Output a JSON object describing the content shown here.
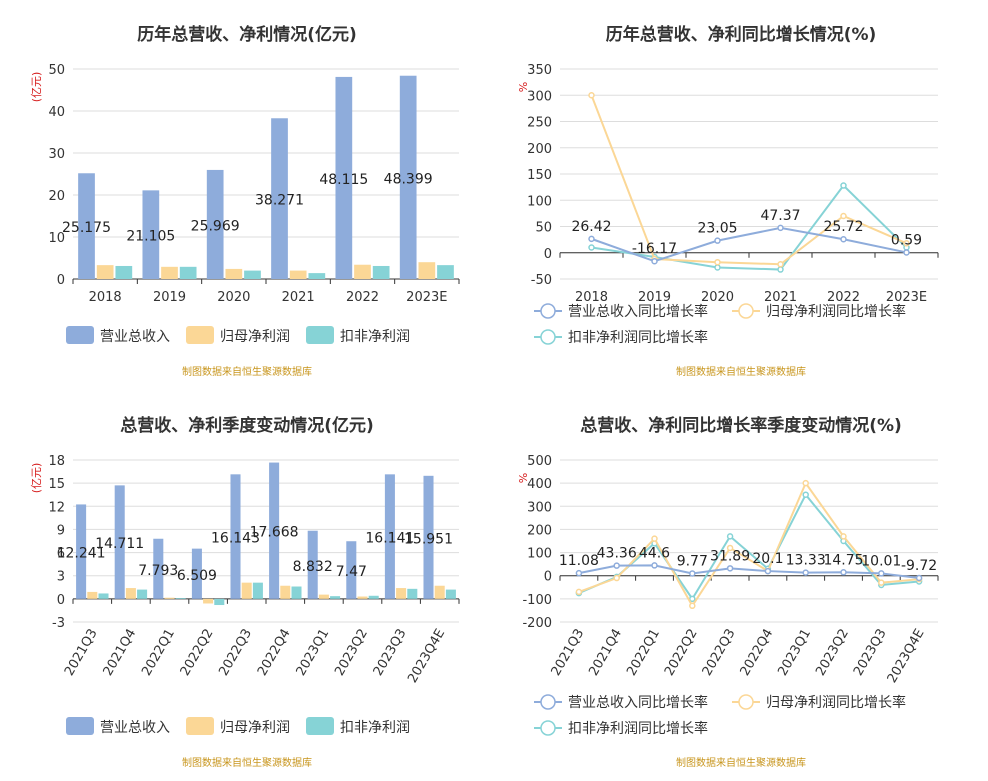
{
  "colors": {
    "revenue": "#8eacdb",
    "netprofit": "#fbd796",
    "deducted": "#86d3d6",
    "unit": "#d61c1c",
    "source": "#c8961e"
  },
  "chart_data": [
    {
      "type": "bar",
      "title": "历年总营收、净利情况(亿元)",
      "ylabel": "(亿元)",
      "ylim": [
        0,
        50
      ],
      "yticks": [
        "0",
        "10",
        "20",
        "30",
        "40",
        "50"
      ],
      "categories": [
        "2018",
        "2019",
        "2020",
        "2021",
        "2022",
        "2023E"
      ],
      "series": [
        {
          "name": "营业总收入",
          "values": [
            25.175,
            21.105,
            25.969,
            38.271,
            48.115,
            48.399
          ],
          "labels": [
            "25.175",
            "21.105",
            "25.969",
            "38.271",
            "48.115",
            "48.399"
          ]
        },
        {
          "name": "归母净利润",
          "values": [
            3.3,
            2.9,
            2.4,
            2.0,
            3.4,
            4.0
          ]
        },
        {
          "name": "扣非净利润",
          "values": [
            3.1,
            2.9,
            2.0,
            1.4,
            3.1,
            3.3
          ]
        }
      ],
      "source": "制图数据来自恒生聚源数据库"
    },
    {
      "type": "line",
      "title": "历年总营收、净利同比增长情况(%)",
      "ylabel": "%",
      "ylim": [
        -50,
        350
      ],
      "yticks": [
        "-50",
        "0",
        "50",
        "100",
        "150",
        "200",
        "250",
        "300",
        "350"
      ],
      "categories": [
        "2018",
        "2019",
        "2020",
        "2021",
        "2022",
        "2023E"
      ],
      "series": [
        {
          "name": "营业总收入同比增长率",
          "values": [
            26.42,
            -16.17,
            23.05,
            47.37,
            25.72,
            0.59
          ],
          "labels": [
            "26.42",
            "-16.17",
            "23.05",
            "47.37",
            "25.72",
            "0.59"
          ]
        },
        {
          "name": "归母净利润同比增长率",
          "values": [
            300,
            -12,
            -18,
            -22,
            70,
            18
          ]
        },
        {
          "name": "扣非净利润同比增长率",
          "values": [
            10,
            -8,
            -28,
            -32,
            128,
            10
          ]
        }
      ],
      "source": "制图数据来自恒生聚源数据库"
    },
    {
      "type": "bar",
      "title": "总营收、净利季度变动情况(亿元)",
      "ylabel": "(亿元)",
      "ylim": [
        -3,
        18
      ],
      "yticks": [
        "-3",
        "0",
        "3",
        "6",
        "9",
        "12",
        "15",
        "18"
      ],
      "categories": [
        "2021Q3",
        "2021Q4",
        "2022Q1",
        "2022Q2",
        "2022Q3",
        "2022Q4",
        "2023Q1",
        "2023Q2",
        "2023Q3",
        "2023Q4E"
      ],
      "series": [
        {
          "name": "营业总收入",
          "values": [
            12.241,
            14.711,
            7.793,
            6.509,
            16.143,
            17.668,
            8.832,
            7.47,
            16.141,
            15.951
          ],
          "labels": [
            "12.241",
            "14.711",
            "7.793",
            "6.509",
            "16.143",
            "17.668",
            "8.832",
            "7.47",
            "16.141",
            "15.951"
          ]
        },
        {
          "name": "归母净利润",
          "values": [
            0.9,
            1.4,
            0.15,
            -0.6,
            2.1,
            1.7,
            0.55,
            0.3,
            1.4,
            1.7
          ]
        },
        {
          "name": "扣非净利润",
          "values": [
            0.7,
            1.2,
            0.1,
            -0.8,
            2.1,
            1.6,
            0.35,
            0.4,
            1.3,
            1.2
          ]
        }
      ],
      "source": "制图数据来自恒生聚源数据库"
    },
    {
      "type": "line",
      "title": "总营收、净利同比增长率季度变动情况(%)",
      "ylabel": "%",
      "ylim": [
        -200,
        500
      ],
      "yticks": [
        "-200",
        "-100",
        "0",
        "100",
        "200",
        "300",
        "400",
        "500"
      ],
      "categories": [
        "2021Q3",
        "2021Q4",
        "2022Q1",
        "2022Q2",
        "2022Q3",
        "2022Q4",
        "2023Q1",
        "2023Q2",
        "2023Q3",
        "2023Q4E"
      ],
      "series": [
        {
          "name": "营业总收入同比增长率",
          "values": [
            11.08,
            43.36,
            44.6,
            9.77,
            31.89,
            20.1,
            13.33,
            14.75,
            10.01,
            -9.72
          ],
          "labels": [
            "11.08",
            "43.36",
            "44.6",
            "9.77",
            "31.89",
            "20.1",
            "13.33",
            "14.75",
            "10.01",
            "-9.72"
          ]
        },
        {
          "name": "归母净利润同比增长率",
          "values": [
            -70,
            -10,
            160,
            -130,
            120,
            20,
            400,
            170,
            -30,
            -15
          ]
        },
        {
          "name": "扣非净利润同比增长率",
          "values": [
            -75,
            -5,
            140,
            -100,
            170,
            30,
            350,
            150,
            -40,
            -25
          ]
        }
      ],
      "source": "制图数据来自恒生聚源数据库"
    }
  ]
}
